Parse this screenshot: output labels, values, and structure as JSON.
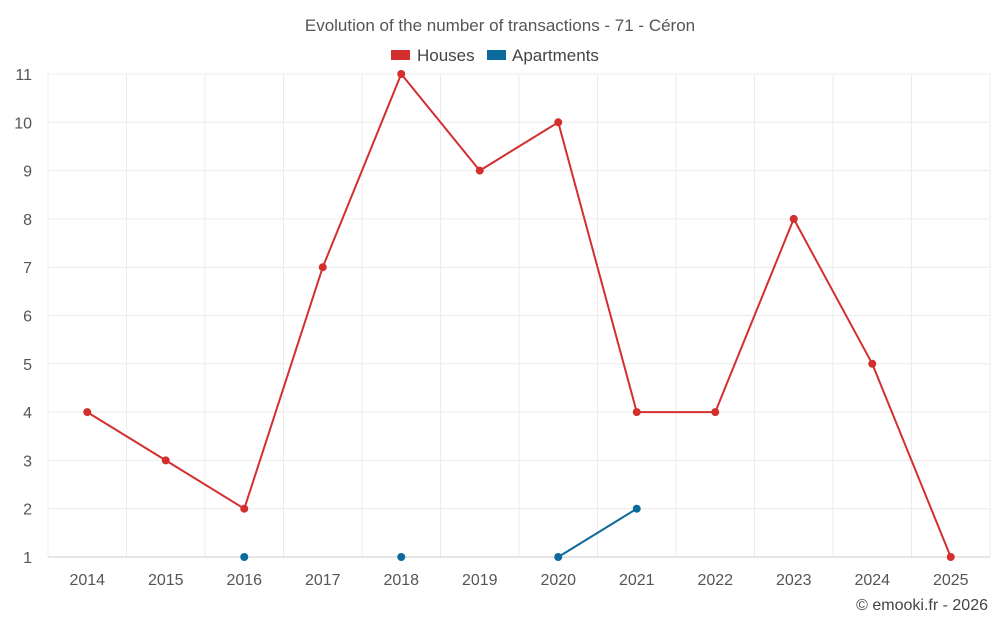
{
  "chart_data": {
    "type": "line",
    "title": "Evolution of the number of transactions - 71 - Céron",
    "x": [
      "2014",
      "2015",
      "2016",
      "2017",
      "2018",
      "2019",
      "2020",
      "2021",
      "2022",
      "2023",
      "2024",
      "2025"
    ],
    "series": [
      {
        "name": "Houses",
        "color": "#d32f2f",
        "values": [
          4,
          3,
          2,
          7,
          11,
          9,
          10,
          4,
          4,
          8,
          5,
          1
        ]
      },
      {
        "name": "Apartments",
        "color": "#0d6a9c",
        "values": [
          null,
          null,
          1,
          null,
          1,
          null,
          1,
          2,
          null,
          null,
          null,
          null
        ]
      }
    ],
    "ylim": [
      1,
      11
    ],
    "yticks": [
      1,
      2,
      3,
      4,
      5,
      6,
      7,
      8,
      9,
      10,
      11
    ],
    "grid": true,
    "legend": "top-center"
  },
  "credit": "© emooki.fr - 2026"
}
